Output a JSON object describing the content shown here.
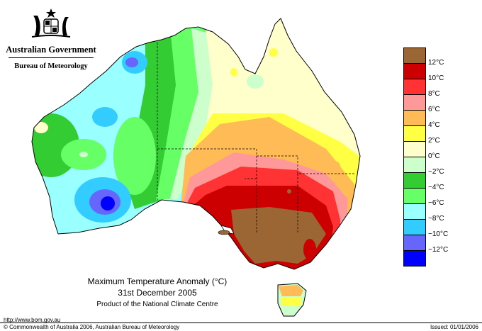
{
  "header": {
    "government": "Australian Government",
    "bureau": "Bureau of Meteorology",
    "crest": "commonwealth-coat-of-arms-icon"
  },
  "map": {
    "region": "Australia",
    "variable": "maximum temperature anomaly"
  },
  "legend": {
    "colors": [
      "#9b6634",
      "#cc0000",
      "#ff3333",
      "#ff9999",
      "#ffbb55",
      "#ffff44",
      "#ffffcc",
      "#ccffcc",
      "#33cc33",
      "#66ff66",
      "#99ffff",
      "#33ccff",
      "#6666ff",
      "#0000ff"
    ],
    "labels": [
      "12°C",
      "10°C",
      "8°C",
      "6°C",
      "4°C",
      "2°C",
      "0°C",
      "−2°C",
      "−4°C",
      "−6°C",
      "−8°C",
      "−10°C",
      "−12°C"
    ]
  },
  "caption": {
    "title": "Maximum Temperature Anomaly (°C)",
    "date": "31st December 2005",
    "product": "Product of the National Climate Centre"
  },
  "footer": {
    "url": "http://www.bom.gov.au",
    "copyright": "© Commonwealth of Australia 2006, Australian Bureau of Meteorology",
    "issued": "Issued: 01/01/2006"
  }
}
